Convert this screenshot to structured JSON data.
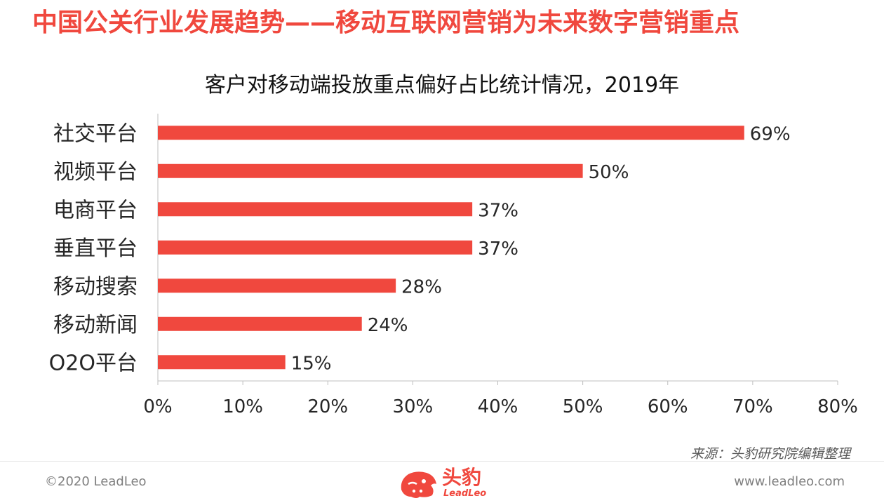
{
  "page": {
    "title": "中国公关行业发展趋势——移动互联网营销为未来数字营销重点",
    "source": "来源：头豹研究院编辑整理",
    "copyright": "©2020 LeadLeo",
    "website": "www.leadleo.com",
    "logo": {
      "name": "头豹",
      "sub": "LeadLeo"
    }
  },
  "colors": {
    "accent": "#f0483e",
    "bar": "#f0483e",
    "text": "#262626",
    "axis": "#595959"
  },
  "chart_data": {
    "type": "bar",
    "orientation": "horizontal",
    "title": "客户对移动端投放重点偏好占比统计情况，2019年",
    "categories": [
      "社交平台",
      "视频平台",
      "电商平台",
      "垂直平台",
      "移动搜索",
      "移动新闻",
      "O2O平台"
    ],
    "values": [
      69,
      50,
      37,
      37,
      28,
      24,
      15
    ],
    "data_labels": [
      "69%",
      "50%",
      "37%",
      "37%",
      "28%",
      "24%",
      "15%"
    ],
    "xlim": [
      0,
      80
    ],
    "xticks": [
      0,
      10,
      20,
      30,
      40,
      50,
      60,
      70,
      80
    ],
    "xtick_labels": [
      "0%",
      "10%",
      "20%",
      "30%",
      "40%",
      "50%",
      "60%",
      "70%",
      "80%"
    ],
    "grid": false,
    "legend": "none"
  }
}
